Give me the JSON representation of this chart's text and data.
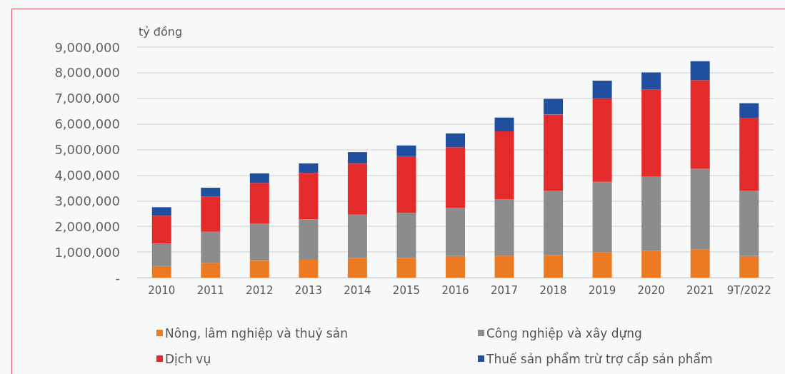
{
  "chart_data": {
    "type": "bar",
    "stacked": true,
    "ylabel": "tỷ đồng",
    "categories": [
      "2010",
      "2011",
      "2012",
      "2013",
      "2014",
      "2015",
      "2016",
      "2017",
      "2018",
      "2019",
      "2020",
      "2021",
      "9T/2022"
    ],
    "series": [
      {
        "name": "Nông, lâm nghiệp và thuỷ sản",
        "color": "#ec7a22",
        "values": [
          450000,
          580000,
          680000,
          700000,
          770000,
          770000,
          840000,
          860000,
          880000,
          1000000,
          1050000,
          1110000,
          840000
        ]
      },
      {
        "name": "Công nghiệp và xây dựng",
        "color": "#8c8c8c",
        "values": [
          880000,
          1210000,
          1440000,
          1580000,
          1690000,
          1760000,
          1880000,
          2190000,
          2520000,
          2740000,
          2910000,
          3140000,
          2560000
        ]
      },
      {
        "name": "Dịch vụ",
        "color": "#e32b2b",
        "values": [
          1090000,
          1370000,
          1580000,
          1810000,
          2010000,
          2210000,
          2370000,
          2660000,
          2970000,
          3250000,
          3380000,
          3460000,
          2820000
        ]
      },
      {
        "name": "Thuế sản phẩm trừ trợ cấp sản phẩm",
        "color": "#1f4f9e",
        "values": [
          330000,
          350000,
          370000,
          370000,
          430000,
          420000,
          540000,
          540000,
          610000,
          700000,
          670000,
          740000,
          590000
        ]
      }
    ],
    "ylim": [
      0,
      9000000
    ],
    "yticks": [
      {
        "value": 0,
        "label": "-"
      },
      {
        "value": 1000000,
        "label": "1,000,000"
      },
      {
        "value": 2000000,
        "label": "2,000,000"
      },
      {
        "value": 3000000,
        "label": "3,000,000"
      },
      {
        "value": 4000000,
        "label": "4,000,000"
      },
      {
        "value": 5000000,
        "label": "5,000,000"
      },
      {
        "value": 6000000,
        "label": "6,000,000"
      },
      {
        "value": 7000000,
        "label": "7,000,000"
      },
      {
        "value": 8000000,
        "label": "8,000,000"
      },
      {
        "value": 9000000,
        "label": "9,000,000"
      }
    ],
    "grid": "y",
    "legend": "bottom"
  }
}
